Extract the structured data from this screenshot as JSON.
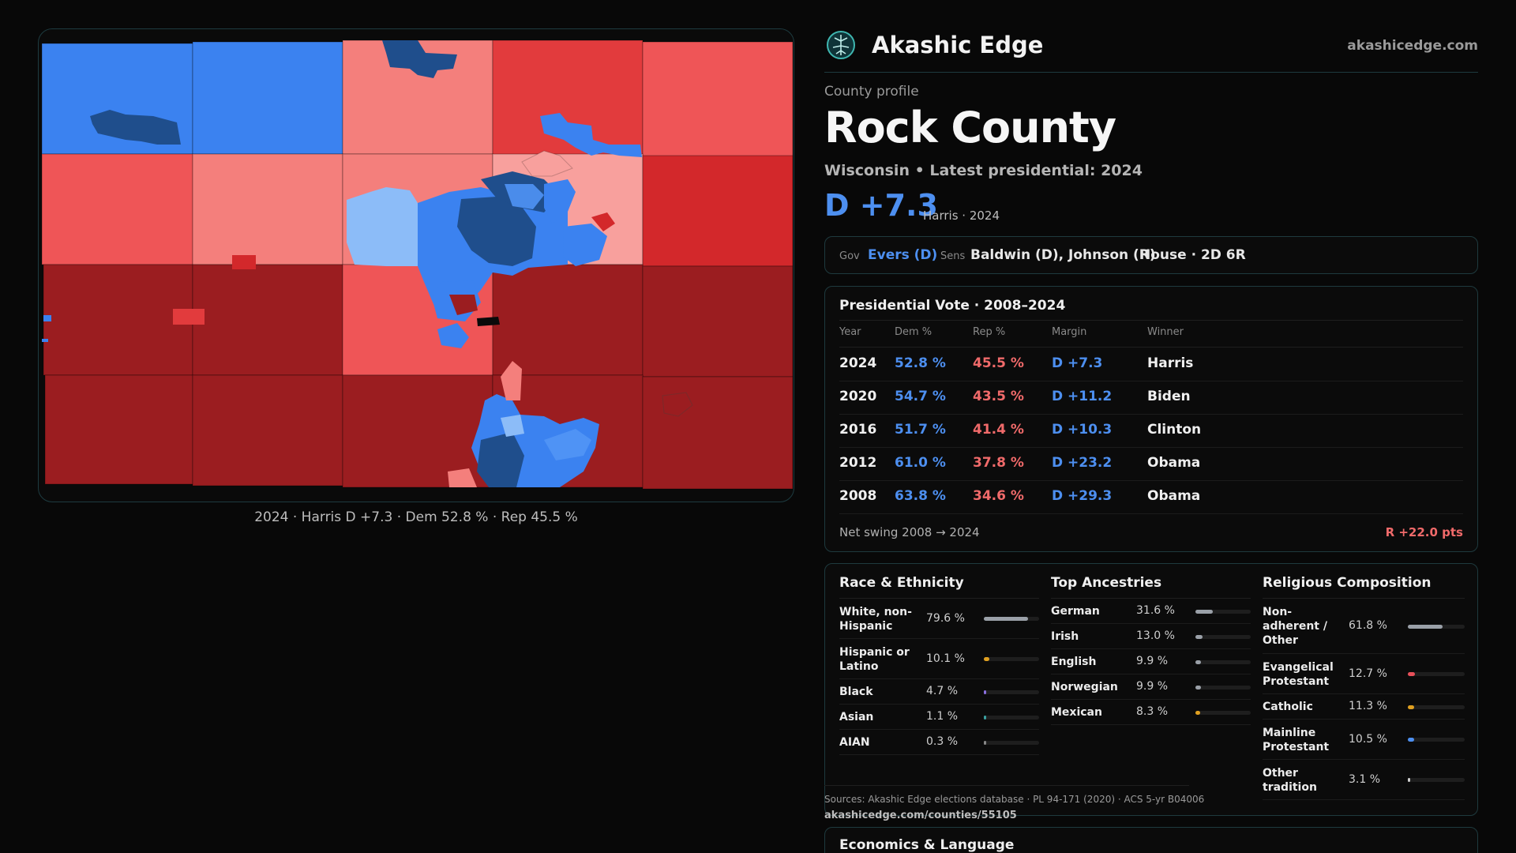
{
  "map": {
    "caption": "2024 · Harris D +7.3 · Dem 52.8 % · Rep 45.5 %",
    "colors": {
      "dem_strong": "#1f4e8c",
      "dem_mid": "#3b82f0",
      "dem_light": "#4f93f5",
      "dem_pale": "#8cbcf8",
      "rep_strong": "#9b1d20",
      "rep_mid": "#e23b3d",
      "rep_light": "#ef5557",
      "rep_pale": "#f47f7c",
      "rep_faint": "#f8a09d"
    }
  },
  "brand": {
    "name": "Akashic Edge",
    "url": "akashicedge.com",
    "logo_icon": "tree-of-life-icon"
  },
  "profile": {
    "eyebrow": "County profile",
    "county": "Rock County",
    "subtitle": "Wisconsin • Latest presidential: 2024",
    "margin": "D +7.3",
    "margin_note": "Harris · 2024"
  },
  "officials": {
    "gov_label": "Gov",
    "gov": "Evers (D)",
    "sens_label": "Sens",
    "sens": "Baldwin (D), Johnson (R)",
    "house": "House · 2D 6R"
  },
  "presidential": {
    "title": "Presidential Vote · 2008–2024",
    "headers": {
      "year": "Year",
      "dem": "Dem %",
      "rep": "Rep %",
      "margin": "Margin",
      "winner": "Winner"
    },
    "rows": [
      {
        "year": "2024",
        "dem": "52.8 %",
        "rep": "45.5 %",
        "margin": "D +7.3",
        "winner": "Harris"
      },
      {
        "year": "2020",
        "dem": "54.7 %",
        "rep": "43.5 %",
        "margin": "D +11.2",
        "winner": "Biden"
      },
      {
        "year": "2016",
        "dem": "51.7 %",
        "rep": "41.4 %",
        "margin": "D +10.3",
        "winner": "Clinton"
      },
      {
        "year": "2012",
        "dem": "61.0 %",
        "rep": "37.8 %",
        "margin": "D +23.2",
        "winner": "Obama"
      },
      {
        "year": "2008",
        "dem": "63.8 %",
        "rep": "34.6 %",
        "margin": "D +29.3",
        "winner": "Obama"
      }
    ],
    "swing_label": "Net swing 2008 → 2024",
    "swing_value": "R +22.0 pts"
  },
  "race": {
    "title": "Race & Ethnicity",
    "items": [
      {
        "name": "White, non-Hispanic",
        "pct": "79.6 %",
        "value": 79.6,
        "color": "#9aa0a8"
      },
      {
        "name": "Hispanic or Latino",
        "pct": "10.1 %",
        "value": 10.1,
        "color": "#e0a020"
      },
      {
        "name": "Black",
        "pct": "4.7 %",
        "value": 4.7,
        "color": "#8b6fe0"
      },
      {
        "name": "Asian",
        "pct": "1.1 %",
        "value": 1.1,
        "color": "#3aa0a0"
      },
      {
        "name": "AIAN",
        "pct": "0.3 %",
        "value": 0.3,
        "color": "#888888"
      }
    ]
  },
  "ancestry": {
    "title": "Top Ancestries",
    "items": [
      {
        "name": "German",
        "pct": "31.6 %",
        "value": 31.6,
        "color": "#9aa0a8"
      },
      {
        "name": "Irish",
        "pct": "13.0 %",
        "value": 13.0,
        "color": "#9aa0a8"
      },
      {
        "name": "English",
        "pct": "9.9 %",
        "value": 9.9,
        "color": "#9aa0a8"
      },
      {
        "name": "Norwegian",
        "pct": "9.9 %",
        "value": 9.9,
        "color": "#9aa0a8"
      },
      {
        "name": "Mexican",
        "pct": "8.3 %",
        "value": 8.3,
        "color": "#e0a020"
      }
    ]
  },
  "religion": {
    "title": "Religious Composition",
    "items": [
      {
        "name": "Non-adherent / Other",
        "pct": "61.8 %",
        "value": 61.8,
        "color": "#9aa0a8"
      },
      {
        "name": "Evangelical Protestant",
        "pct": "12.7 %",
        "value": 12.7,
        "color": "#e8505a"
      },
      {
        "name": "Catholic",
        "pct": "11.3 %",
        "value": 11.3,
        "color": "#e0a020"
      },
      {
        "name": "Mainline Protestant",
        "pct": "10.5 %",
        "value": 10.5,
        "color": "#4d8ff0"
      },
      {
        "name": "Other tradition",
        "pct": "3.1 %",
        "value": 3.1,
        "color": "#cfcfcf"
      }
    ]
  },
  "sources": {
    "text": "Sources: Akashic Edge elections database · PL 94-171 (2020) · ACS 5-yr B04006",
    "url": "akashicedge.com/counties/55105"
  },
  "economics": {
    "title": "Economics & Language"
  }
}
